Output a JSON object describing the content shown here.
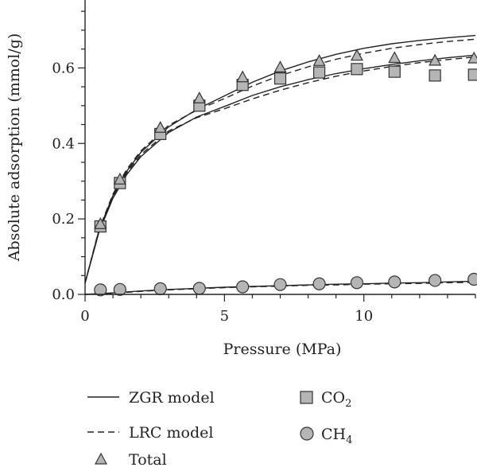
{
  "chart_data": {
    "type": "scatter",
    "xlabel": "Pressure (MPa)",
    "ylabel": "Absolute adsorption (mmol/g)",
    "xlim": [
      0,
      14
    ],
    "ylim": [
      0,
      0.78
    ],
    "x_ticks": [
      0,
      5,
      10
    ],
    "y_ticks": [
      0.0,
      0.2,
      0.4,
      0.6
    ],
    "x_tick_labels": [
      "0",
      "5",
      "10"
    ],
    "y_tick_labels": [
      "0.0",
      "0.2",
      "0.4",
      "0.6"
    ],
    "grid": false,
    "legend": {
      "placement": "bottom",
      "zgr_label": "ZGR model",
      "lrc_label": "LRC model",
      "total_label": "Total",
      "co2_main": "CO",
      "co2_sub": "2",
      "ch4_main": "CH",
      "ch4_sub": "4"
    },
    "series": [
      {
        "name": "CO2",
        "kind": "points",
        "marker": "square",
        "x": [
          0.55,
          1.25,
          2.7,
          4.1,
          5.65,
          7.0,
          8.4,
          9.75,
          11.1,
          12.55,
          13.95
        ],
        "y": [
          0.18,
          0.295,
          0.425,
          0.5,
          0.555,
          0.572,
          0.588,
          0.597,
          0.59,
          0.58,
          0.582
        ]
      },
      {
        "name": "Total",
        "kind": "points",
        "marker": "triangle",
        "x": [
          0.55,
          1.25,
          2.7,
          4.1,
          5.65,
          7.0,
          8.4,
          9.75,
          11.1,
          12.55,
          13.95
        ],
        "y": [
          0.185,
          0.303,
          0.44,
          0.518,
          0.574,
          0.6,
          0.617,
          0.631,
          0.625,
          0.618,
          0.624
        ]
      },
      {
        "name": "CH4",
        "kind": "points",
        "marker": "circle",
        "x": [
          0.55,
          1.25,
          2.7,
          4.1,
          5.65,
          7.0,
          8.4,
          9.75,
          11.1,
          12.55,
          13.95
        ],
        "y": [
          0.012,
          0.013,
          0.015,
          0.016,
          0.02,
          0.026,
          0.028,
          0.031,
          0.033,
          0.037,
          0.04
        ]
      }
    ],
    "curves": [
      {
        "model": "ZGR",
        "style": "solid",
        "target": "CO2",
        "x": [
          0,
          0.5,
          1.0,
          1.5,
          2.0,
          3.0,
          4.0,
          5.0,
          6.0,
          7.0,
          8.0,
          9.0,
          10.0,
          11.0,
          12.0,
          13.0,
          14.0
        ],
        "y": [
          0.03,
          0.165,
          0.255,
          0.318,
          0.365,
          0.429,
          0.47,
          0.498,
          0.527,
          0.55,
          0.569,
          0.585,
          0.598,
          0.609,
          0.619,
          0.627,
          0.634
        ]
      },
      {
        "model": "ZGR",
        "style": "solid",
        "target": "Total",
        "x": [
          0,
          0.5,
          1.0,
          1.5,
          2.0,
          3.0,
          4.0,
          5.0,
          6.0,
          7.0,
          8.0,
          9.0,
          10.0,
          11.0,
          12.0,
          13.0,
          14.0
        ],
        "y": [
          0.03,
          0.17,
          0.262,
          0.327,
          0.376,
          0.444,
          0.49,
          0.526,
          0.562,
          0.592,
          0.616,
          0.636,
          0.652,
          0.664,
          0.673,
          0.68,
          0.686
        ]
      },
      {
        "model": "LRC",
        "style": "dashed",
        "target": "CO2",
        "x": [
          0,
          0.5,
          1.0,
          1.5,
          2.0,
          3.0,
          4.0,
          5.0,
          6.0,
          7.0,
          8.0,
          9.0,
          10.0,
          11.0,
          12.0,
          13.0,
          14.0
        ],
        "y": [
          0.03,
          0.168,
          0.26,
          0.323,
          0.37,
          0.433,
          0.468,
          0.492,
          0.518,
          0.541,
          0.561,
          0.578,
          0.592,
          0.604,
          0.614,
          0.622,
          0.629
        ]
      },
      {
        "model": "LRC",
        "style": "dashed",
        "target": "Total",
        "x": [
          0,
          0.5,
          1.0,
          1.5,
          2.0,
          3.0,
          4.0,
          5.0,
          6.0,
          7.0,
          8.0,
          9.0,
          10.0,
          11.0,
          12.0,
          13.0,
          14.0
        ],
        "y": [
          0.03,
          0.172,
          0.266,
          0.332,
          0.38,
          0.448,
          0.488,
          0.519,
          0.552,
          0.58,
          0.603,
          0.623,
          0.639,
          0.652,
          0.662,
          0.67,
          0.676
        ]
      },
      {
        "model": "ZGR",
        "style": "solid",
        "target": "CH4",
        "x": [
          0,
          1.0,
          2.0,
          3.0,
          4.0,
          5.0,
          6.0,
          7.0,
          8.0,
          9.0,
          10.0,
          11.0,
          12.0,
          13.0,
          14.0
        ],
        "y": [
          0,
          0.004,
          0.009,
          0.013,
          0.016,
          0.019,
          0.021,
          0.023,
          0.025,
          0.027,
          0.028,
          0.03,
          0.031,
          0.033,
          0.035
        ]
      },
      {
        "model": "LRC",
        "style": "dashed",
        "target": "CH4",
        "x": [
          0,
          1.0,
          2.0,
          3.0,
          4.0,
          5.0,
          6.0,
          7.0,
          8.0,
          9.0,
          10.0,
          11.0,
          12.0,
          13.0,
          14.0
        ],
        "y": [
          0,
          0.003,
          0.008,
          0.012,
          0.015,
          0.018,
          0.02,
          0.022,
          0.024,
          0.025,
          0.027,
          0.028,
          0.029,
          0.031,
          0.032
        ]
      }
    ]
  }
}
